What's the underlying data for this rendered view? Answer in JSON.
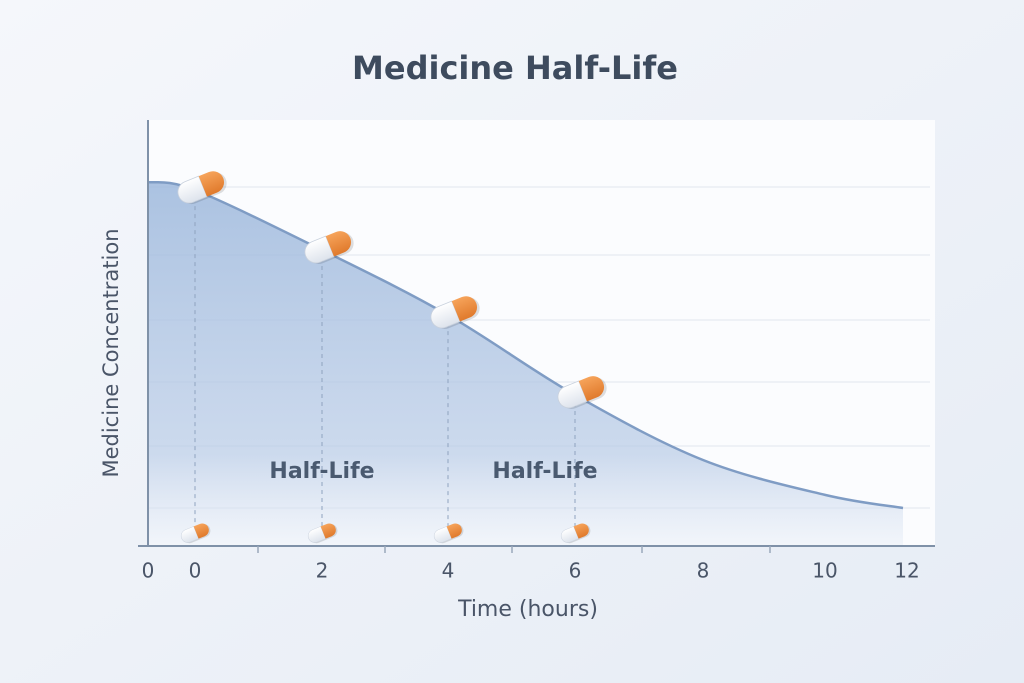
{
  "chart_data": {
    "type": "area",
    "title": "Medicine Half-Life",
    "x_label": "Time (hours)",
    "y_label": "Medicine Concentration",
    "categories": [
      "0",
      "0",
      "2",
      "4",
      "6",
      "8",
      "10",
      "12"
    ],
    "values": [
      85.4,
      83.5,
      69.4,
      54.1,
      35.3,
      20,
      11.8,
      8.7
    ],
    "ylim": [
      0,
      100
    ],
    "color": "#9db8dc",
    "grid": true,
    "annotations": [
      "Half-Life",
      "Half-Life"
    ]
  }
}
